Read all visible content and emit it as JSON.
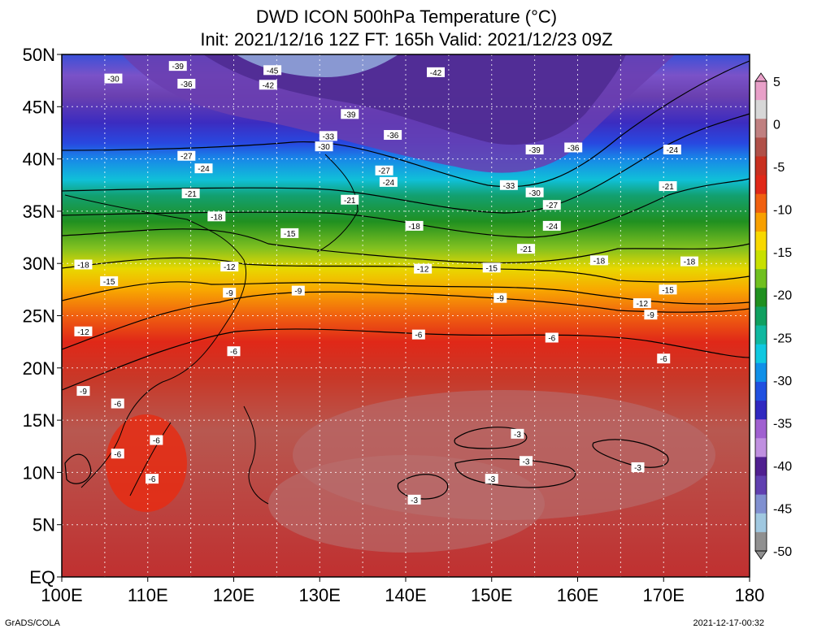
{
  "title_line1": "DWD ICON 500hPa Temperature (°C)",
  "title_line2": "Init: 2021/12/16 12Z  FT: 165h  Valid: 2021/12/23 09Z",
  "lat_labels": [
    "50N",
    "45N",
    "40N",
    "35N",
    "30N",
    "25N",
    "20N",
    "15N",
    "10N",
    "5N",
    "EQ"
  ],
  "lon_labels": [
    "100E",
    "110E",
    "120E",
    "130E",
    "140E",
    "150E",
    "160E",
    "170E",
    "180"
  ],
  "colorbar_labels": [
    "5",
    "0",
    "-5",
    "-10",
    "-15",
    "-20",
    "-25",
    "-30",
    "-35",
    "-40",
    "-45",
    "-50"
  ],
  "colorbar_colors": [
    "#e8a0c8",
    "#d7d7d7",
    "#c08080",
    "#b05048",
    "#c83020",
    "#e02818",
    "#f06010",
    "#f8a000",
    "#f8d800",
    "#c8e000",
    "#70c020",
    "#209020",
    "#10a060",
    "#10b8a0",
    "#10c8e0",
    "#1090e8",
    "#2050e0",
    "#3028c0",
    "#a060d0",
    "#c090e0",
    "#502090",
    "#6040b0",
    "#8090d0",
    "#a0c8e0",
    "#909090"
  ],
  "footer_left": "GrADS/COLA",
  "footer_right": "2021-12-17-00:32",
  "contour_labels": [
    {
      "text": "-45",
      "lon": 124.5,
      "lat": 48.5
    },
    {
      "text": "-42",
      "lon": 124,
      "lat": 47.1
    },
    {
      "text": "-42",
      "lon": 143.5,
      "lat": 48.3
    },
    {
      "text": "-39",
      "lon": 113.5,
      "lat": 48.9
    },
    {
      "text": "-39",
      "lon": 133.5,
      "lat": 44.3
    },
    {
      "text": "-39",
      "lon": 155,
      "lat": 40.9
    },
    {
      "text": "-36",
      "lon": 114.5,
      "lat": 47.2
    },
    {
      "text": "-36",
      "lon": 138.5,
      "lat": 42.3
    },
    {
      "text": "-36",
      "lon": 159.5,
      "lat": 41.1
    },
    {
      "text": "-33",
      "lon": 131,
      "lat": 42.2
    },
    {
      "text": "-33",
      "lon": 152,
      "lat": 37.5
    },
    {
      "text": "-30",
      "lon": 106,
      "lat": 47.7
    },
    {
      "text": "-30",
      "lon": 130.5,
      "lat": 41.2
    },
    {
      "text": "-30",
      "lon": 155,
      "lat": 36.8
    },
    {
      "text": "-27",
      "lon": 114.5,
      "lat": 40.3
    },
    {
      "text": "-27",
      "lon": 137.5,
      "lat": 38.9
    },
    {
      "text": "-27",
      "lon": 157,
      "lat": 35.6
    },
    {
      "text": "-24",
      "lon": 116.5,
      "lat": 39.1
    },
    {
      "text": "-24",
      "lon": 138,
      "lat": 37.8
    },
    {
      "text": "-24",
      "lon": 157,
      "lat": 33.6
    },
    {
      "text": "-24",
      "lon": 171,
      "lat": 40.9
    },
    {
      "text": "-21",
      "lon": 115,
      "lat": 36.7
    },
    {
      "text": "-21",
      "lon": 133.5,
      "lat": 36.1
    },
    {
      "text": "-21",
      "lon": 154,
      "lat": 31.4
    },
    {
      "text": "-21",
      "lon": 170.5,
      "lat": 37.4
    },
    {
      "text": "-18",
      "lon": 118,
      "lat": 34.5
    },
    {
      "text": "-18",
      "lon": 141,
      "lat": 33.6
    },
    {
      "text": "-18",
      "lon": 162.5,
      "lat": 30.3
    },
    {
      "text": "-18",
      "lon": 173,
      "lat": 30.2
    },
    {
      "text": "-18",
      "lon": 102.5,
      "lat": 29.9
    },
    {
      "text": "-15",
      "lon": 126.5,
      "lat": 32.9
    },
    {
      "text": "-15",
      "lon": 105.5,
      "lat": 28.3
    },
    {
      "text": "-15",
      "lon": 150,
      "lat": 29.6
    },
    {
      "text": "-15",
      "lon": 170.5,
      "lat": 27.5
    },
    {
      "text": "-12",
      "lon": 119.5,
      "lat": 29.7
    },
    {
      "text": "-12",
      "lon": 142,
      "lat": 29.5
    },
    {
      "text": "-12",
      "lon": 102.5,
      "lat": 23.5
    },
    {
      "text": "-12",
      "lon": 167.5,
      "lat": 26.2
    },
    {
      "text": "-9",
      "lon": 119.5,
      "lat": 27.2
    },
    {
      "text": "-9",
      "lon": 127.5,
      "lat": 27.4
    },
    {
      "text": "-9",
      "lon": 151,
      "lat": 26.7
    },
    {
      "text": "-9",
      "lon": 168.5,
      "lat": 25.1
    },
    {
      "text": "-9",
      "lon": 102.5,
      "lat": 17.8
    },
    {
      "text": "-6",
      "lon": 141.5,
      "lat": 23.2
    },
    {
      "text": "-6",
      "lon": 157,
      "lat": 22.9
    },
    {
      "text": "-6",
      "lon": 170,
      "lat": 20.9
    },
    {
      "text": "-6",
      "lon": 120,
      "lat": 21.6
    },
    {
      "text": "-6",
      "lon": 106.5,
      "lat": 16.6
    },
    {
      "text": "-6",
      "lon": 111,
      "lat": 13.1
    },
    {
      "text": "-6",
      "lon": 106.5,
      "lat": 11.8
    },
    {
      "text": "-6",
      "lon": 110.5,
      "lat": 9.4
    },
    {
      "text": "-3",
      "lon": 153,
      "lat": 13.7
    },
    {
      "text": "-3",
      "lon": 154,
      "lat": 11.1
    },
    {
      "text": "-3",
      "lon": 167,
      "lat": 10.5
    },
    {
      "text": "-3",
      "lon": 150,
      "lat": 9.4
    },
    {
      "text": "-3",
      "lon": 141,
      "lat": 7.4
    }
  ]
}
